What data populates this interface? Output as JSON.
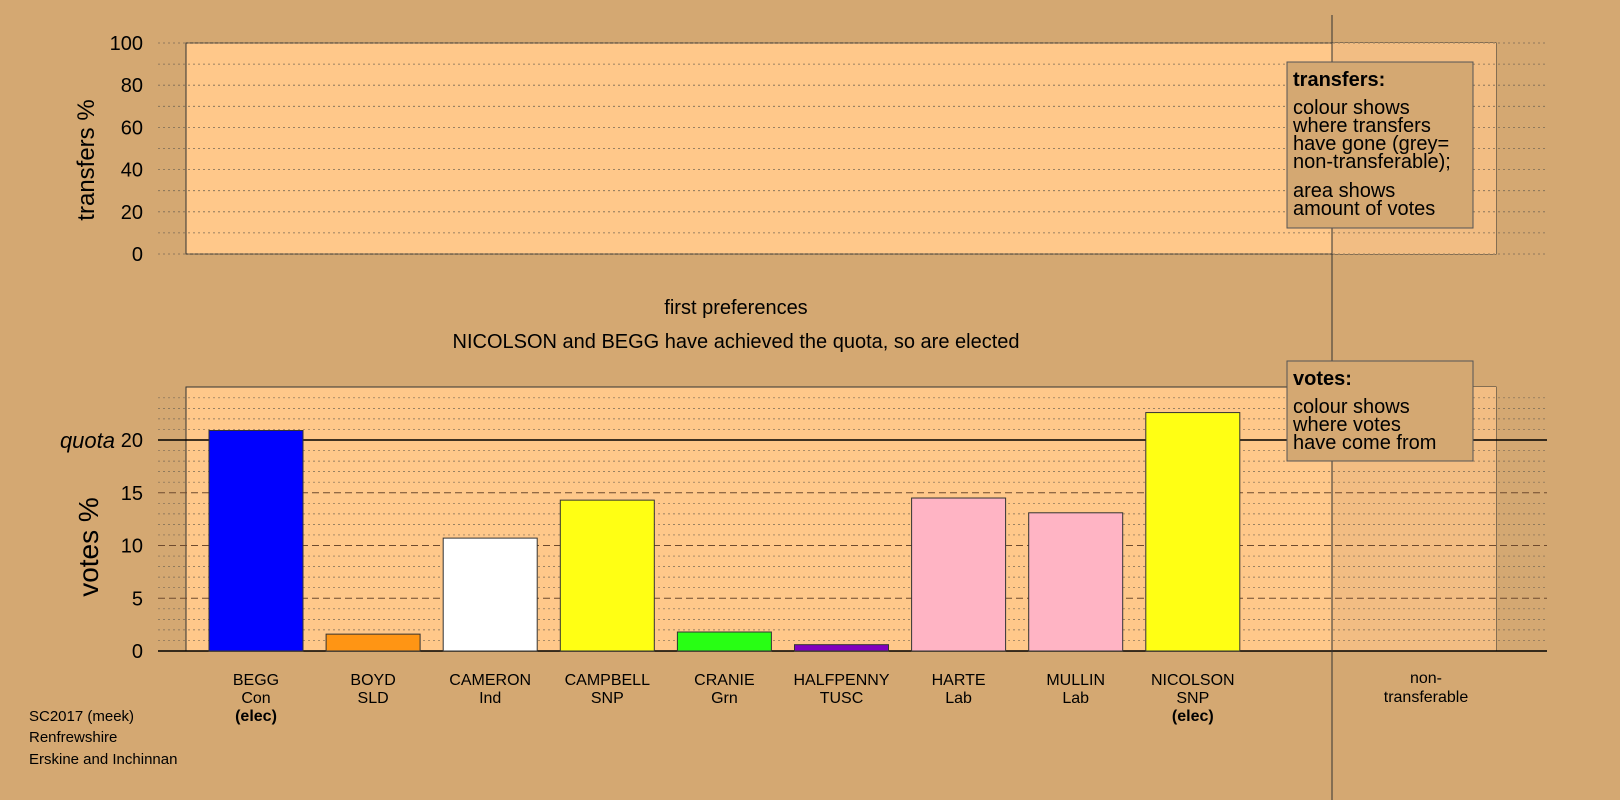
{
  "colors": {
    "background": "#d4a872",
    "panel": "#ffc88a",
    "rightStrip": "#d4a872"
  },
  "transfers_axis": {
    "label": "transfers %",
    "ticks": [
      "0",
      "20",
      "40",
      "60",
      "80",
      "100"
    ]
  },
  "transfers_legend": {
    "title": "transfers:",
    "lines1": [
      "colour shows",
      "where transfers",
      "have gone (grey=",
      "non-transferable);"
    ],
    "lines2": [
      "area shows",
      "amount of votes"
    ]
  },
  "stage": {
    "title": "first preferences",
    "subtitle": "NICOLSON and BEGG have achieved the quota, so are elected"
  },
  "votes_axis": {
    "label": "votes %",
    "quota_label": "quota",
    "ticks": [
      "0",
      "5",
      "10",
      "15",
      "20"
    ]
  },
  "votes_legend": {
    "title": "votes:",
    "lines": [
      "colour shows",
      "where votes",
      "have come from"
    ]
  },
  "non_transferable": [
    "non-",
    "transferable"
  ],
  "footer": [
    "SC2017 (meek)",
    "Renfrewshire",
    "Erskine and Inchinnan"
  ],
  "chart_data": {
    "type": "bar",
    "ylabel": "votes %",
    "ylim": [
      0,
      24
    ],
    "quota": 20,
    "categories": [
      "BEGG",
      "BOYD",
      "CAMERON",
      "CAMPBELL",
      "CRANIE",
      "HALFPENNY",
      "HARTE",
      "MULLIN",
      "NICOLSON"
    ],
    "parties": [
      "Con",
      "SLD",
      "Ind",
      "SNP",
      "Grn",
      "TUSC",
      "Lab",
      "Lab",
      "SNP"
    ],
    "elected": [
      "(elec)",
      "",
      "",
      "",
      "",
      "",
      "",
      "",
      "(elec)"
    ],
    "values": [
      20.9,
      1.6,
      10.7,
      14.3,
      1.8,
      0.6,
      14.5,
      13.1,
      22.6
    ],
    "colors": [
      "#0000ff",
      "#ff9514",
      "#ffffff",
      "#ffff14",
      "#28ff14",
      "#8000c0",
      "#ffb4c4",
      "#ffb4c4",
      "#ffff14"
    ],
    "transfers_ylim": [
      0,
      100
    ]
  }
}
